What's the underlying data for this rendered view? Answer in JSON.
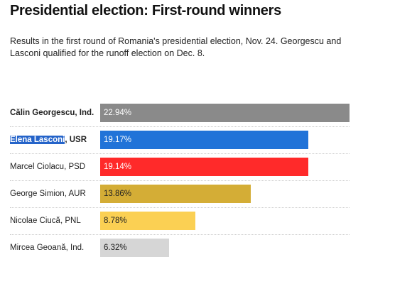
{
  "title": "Presidential election: First-round winners",
  "subtitle": "Results in the first round of Romania's presidential election, Nov. 24. Georgescu and Lasconi qualified for the runoff election on Dec. 8.",
  "chart_data": {
    "type": "bar",
    "orientation": "horizontal",
    "unit": "%",
    "xlim": [
      0,
      22.94
    ],
    "grid": false,
    "legend": "none",
    "bars": [
      {
        "name": "Călin Georgescu",
        "party": "Ind.",
        "label": "22.94%",
        "value": 22.94,
        "color": "#8a8a8a",
        "text_color": "#ffffff",
        "bold": true
      },
      {
        "name": "Elena Lasconi",
        "party": "USR",
        "label": "19.17%",
        "value": 19.17,
        "color": "#2173d8",
        "text_color": "#ffffff",
        "bold": true,
        "highlight_name": true
      },
      {
        "name": "Marcel Ciolacu",
        "party": "PSD",
        "label": "19.14%",
        "value": 19.14,
        "color": "#ff2a2a",
        "text_color": "#ffffff",
        "bold": false
      },
      {
        "name": "George Simion",
        "party": "AUR",
        "label": "13.86%",
        "value": 13.86,
        "color": "#d4ad36",
        "text_color": "#222222",
        "bold": false
      },
      {
        "name": "Nicolae Ciucă",
        "party": "PNL",
        "label": "8.78%",
        "value": 8.78,
        "color": "#fbd053",
        "text_color": "#222222",
        "bold": false
      },
      {
        "name": "Mircea Geoană",
        "party": "Ind.",
        "label": "6.32%",
        "value": 6.32,
        "color": "#d6d6d6",
        "text_color": "#222222",
        "bold": false
      }
    ]
  }
}
